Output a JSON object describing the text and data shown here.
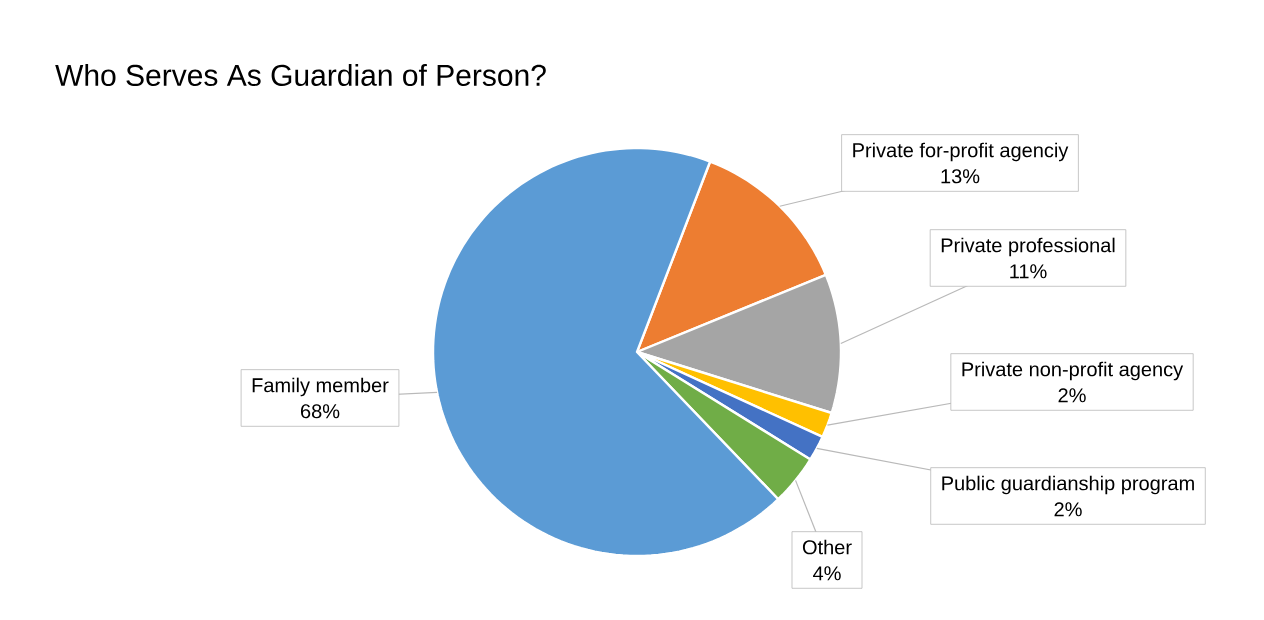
{
  "chart_data": {
    "type": "pie",
    "title": "Who Serves As Guardian of Person?",
    "categories": [
      "Private for-profit agenciy",
      "Private professional",
      "Private non-profit agency",
      "Public guardianship program",
      "Other",
      "Family member"
    ],
    "values": [
      13,
      11,
      2,
      2,
      4,
      68
    ],
    "value_labels": [
      "13%",
      "11%",
      "2%",
      "2%",
      "4%",
      "68%"
    ],
    "colors": [
      "#ed7d31",
      "#a5a5a5",
      "#ffc000",
      "#4472c4",
      "#70ad47",
      "#5b9bd5"
    ]
  }
}
